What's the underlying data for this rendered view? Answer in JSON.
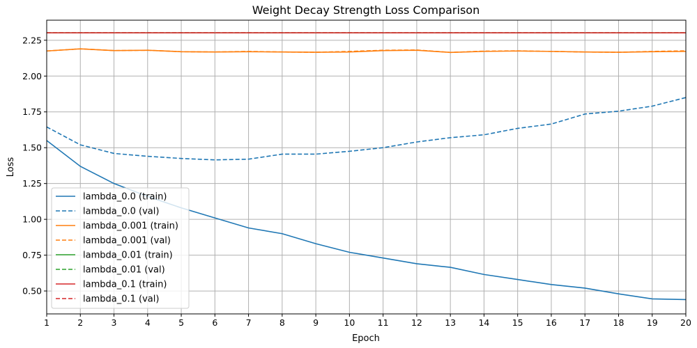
{
  "chart_data": {
    "type": "line",
    "title": "Weight Decay Strength Loss Comparison",
    "xlabel": "Epoch",
    "ylabel": "Loss",
    "xlim": [
      1,
      20
    ],
    "ylim": [
      0.34,
      2.39
    ],
    "x": [
      1,
      2,
      3,
      4,
      5,
      6,
      7,
      8,
      9,
      10,
      11,
      12,
      13,
      14,
      15,
      16,
      17,
      18,
      19,
      20
    ],
    "xticks": [
      "1",
      "2",
      "3",
      "4",
      "5",
      "6",
      "7",
      "8",
      "9",
      "10",
      "11",
      "12",
      "13",
      "14",
      "15",
      "16",
      "17",
      "18",
      "19",
      "20"
    ],
    "yticks": [
      0.5,
      0.75,
      1.0,
      1.25,
      1.5,
      1.75,
      2.0,
      2.25
    ],
    "ytick_labels": [
      "0.50",
      "0.75",
      "1.00",
      "1.25",
      "1.50",
      "1.75",
      "2.00",
      "2.25"
    ],
    "grid": true,
    "legend_position": "lower-left",
    "series": [
      {
        "name": "lambda_0.0 (train)",
        "color": "#1f77b4",
        "dash": "solid",
        "values": [
          1.55,
          1.37,
          1.25,
          1.16,
          1.08,
          1.01,
          0.94,
          0.9,
          0.83,
          0.77,
          0.73,
          0.69,
          0.665,
          0.615,
          0.58,
          0.545,
          0.52,
          0.48,
          0.445,
          0.44
        ]
      },
      {
        "name": "lambda_0.0 (val)",
        "color": "#1f77b4",
        "dash": "dashed",
        "values": [
          1.645,
          1.52,
          1.46,
          1.44,
          1.425,
          1.415,
          1.42,
          1.455,
          1.455,
          1.475,
          1.5,
          1.54,
          1.57,
          1.59,
          1.635,
          1.665,
          1.735,
          1.755,
          1.79,
          1.85
        ]
      },
      {
        "name": "lambda_0.001 (train)",
        "color": "#ff7f0e",
        "dash": "solid",
        "values": [
          2.175,
          2.19,
          2.178,
          2.18,
          2.17,
          2.168,
          2.17,
          2.168,
          2.166,
          2.168,
          2.178,
          2.18,
          2.165,
          2.172,
          2.175,
          2.172,
          2.168,
          2.166,
          2.17,
          2.172
        ]
      },
      {
        "name": "lambda_0.001 (val)",
        "color": "#ff7f0e",
        "dash": "dashed",
        "values": [
          2.175,
          2.19,
          2.178,
          2.18,
          2.17,
          2.168,
          2.172,
          2.168,
          2.166,
          2.172,
          2.18,
          2.182,
          2.165,
          2.174,
          2.176,
          2.172,
          2.168,
          2.166,
          2.172,
          2.176
        ]
      },
      {
        "name": "lambda_0.01 (train)",
        "color": "#2ca02c",
        "dash": "solid",
        "values": [
          2.302,
          2.302,
          2.302,
          2.302,
          2.302,
          2.302,
          2.302,
          2.302,
          2.302,
          2.302,
          2.302,
          2.302,
          2.302,
          2.302,
          2.302,
          2.302,
          2.302,
          2.302,
          2.302,
          2.302
        ]
      },
      {
        "name": "lambda_0.01 (val)",
        "color": "#2ca02c",
        "dash": "dashed",
        "values": [
          2.302,
          2.302,
          2.302,
          2.302,
          2.302,
          2.302,
          2.302,
          2.302,
          2.302,
          2.302,
          2.302,
          2.302,
          2.302,
          2.302,
          2.302,
          2.302,
          2.302,
          2.302,
          2.302,
          2.302
        ]
      },
      {
        "name": "lambda_0.1 (train)",
        "color": "#d62728",
        "dash": "solid",
        "values": [
          2.302,
          2.302,
          2.302,
          2.302,
          2.302,
          2.302,
          2.302,
          2.302,
          2.302,
          2.302,
          2.302,
          2.302,
          2.302,
          2.302,
          2.302,
          2.302,
          2.302,
          2.302,
          2.302,
          2.302
        ]
      },
      {
        "name": "lambda_0.1 (val)",
        "color": "#d62728",
        "dash": "dashed",
        "values": [
          2.302,
          2.302,
          2.302,
          2.302,
          2.302,
          2.302,
          2.302,
          2.302,
          2.302,
          2.302,
          2.302,
          2.302,
          2.302,
          2.302,
          2.302,
          2.302,
          2.302,
          2.302,
          2.302,
          2.302
        ]
      }
    ]
  }
}
